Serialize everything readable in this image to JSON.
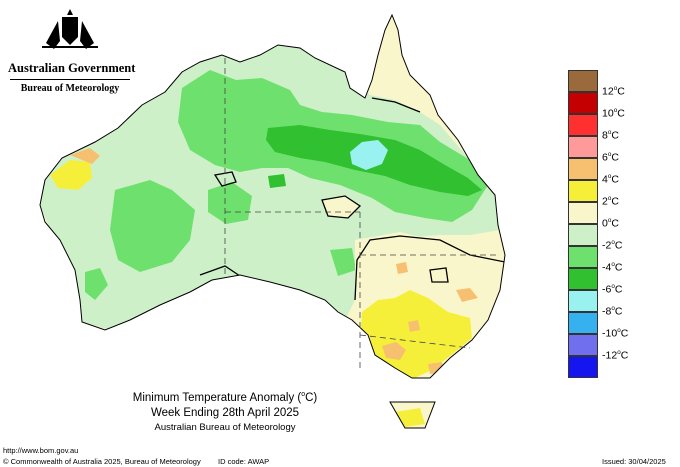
{
  "header": {
    "government": "Australian Government",
    "agency": "Bureau of Meteorology"
  },
  "map": {
    "title_prefix": "Minimum Temperature Anomaly (",
    "title_degree": "o",
    "title_suffix": "C)",
    "period": "Week Ending 28th April 2025",
    "source": "Australian Bureau of Meteorology",
    "dominant_anomaly_range": "-2°C to -4°C over much of northern and central Australia",
    "cold_core": "-4°C to -6°C over western Queensland",
    "warm_area": "+2°C to +4°C over Victoria, southern NSW and southeast SA"
  },
  "legend": {
    "unit_degree": "o",
    "unit_letter": "C",
    "items": [
      {
        "value": "12",
        "color": "#9a6a3c"
      },
      {
        "value": "10",
        "color": "#c40000"
      },
      {
        "value": "8",
        "color": "#ff3030"
      },
      {
        "value": "6",
        "color": "#ff9a9a"
      },
      {
        "value": "4",
        "color": "#f6c070"
      },
      {
        "value": "2",
        "color": "#f6ef3a"
      },
      {
        "value": "0",
        "color": "#faf6cc"
      },
      {
        "value": "-2",
        "color": "#cdf0c8"
      },
      {
        "value": "-4",
        "color": "#6ee06e"
      },
      {
        "value": "-6",
        "color": "#30c030"
      },
      {
        "value": "-8",
        "color": "#9af2f0"
      },
      {
        "value": "-10",
        "color": "#36b0ef"
      },
      {
        "value": "-12",
        "color": "#7070ef"
      },
      {
        "value": "",
        "color": "#1515ef"
      }
    ]
  },
  "footer": {
    "url": "http://www.bom.gov.au",
    "copyright": "© Commonwealth of Australia 2025, Bureau of Meteorology",
    "id_code": "ID code: AWAP",
    "issued": "Issued: 30/04/2025"
  }
}
